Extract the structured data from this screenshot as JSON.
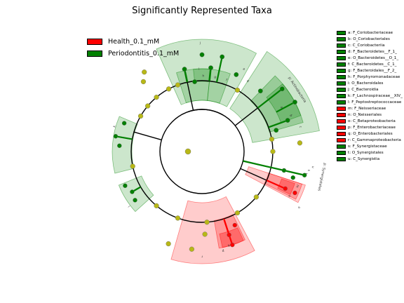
{
  "title": "Significantly Represented Taxa",
  "colors": {
    "health": "#ff0000",
    "periodontitis": "#008000",
    "neutral_node": "#b8b817",
    "edge": "#000000"
  },
  "groups": [
    {
      "id": "health",
      "label": "Health_0.1_mM",
      "color": "#ff0000"
    },
    {
      "id": "periodontitis",
      "label": "Periodontitis_0.1_mM",
      "color": "#008000"
    }
  ],
  "taxa": [
    {
      "letter": "a",
      "text": "a: F_Coriobacteriaceae",
      "group": "periodontitis"
    },
    {
      "letter": "b",
      "text": "b: O_Coriobacteriales",
      "group": "periodontitis"
    },
    {
      "letter": "c",
      "text": "c: C_Coriobacteriia",
      "group": "periodontitis"
    },
    {
      "letter": "d",
      "text": "d: F_Bacteroidetes__F_1_",
      "group": "periodontitis"
    },
    {
      "letter": "e",
      "text": "e: O_Bacteroidetes__O_1_",
      "group": "periodontitis"
    },
    {
      "letter": "f",
      "text": "f: C_Bacteroidetes__C_1_",
      "group": "periodontitis"
    },
    {
      "letter": "g",
      "text": "g: F_Bacteroidales__F_2_",
      "group": "periodontitis"
    },
    {
      "letter": "h",
      "text": "h: F_Porphyromonadaceae",
      "group": "periodontitis"
    },
    {
      "letter": "i",
      "text": "i: O_Bacteroidales",
      "group": "periodontitis"
    },
    {
      "letter": "j",
      "text": "j: C_Bacteroidia",
      "group": "periodontitis"
    },
    {
      "letter": "k",
      "text": "k: F_Lachnospiraceae__XIV_",
      "group": "periodontitis"
    },
    {
      "letter": "l",
      "text": "l: F_Peptostreptococcaceae",
      "group": "periodontitis"
    },
    {
      "letter": "m",
      "text": "m: F_Neisseriaceae",
      "group": "health"
    },
    {
      "letter": "n",
      "text": "n: O_Neisseriales",
      "group": "health"
    },
    {
      "letter": "o",
      "text": "o: C_Betaproteobacteria",
      "group": "health"
    },
    {
      "letter": "p",
      "text": "p: F_Enterobacteriaceae",
      "group": "health"
    },
    {
      "letter": "q",
      "text": "q: O_Enterobacteriales",
      "group": "health"
    },
    {
      "letter": "r",
      "text": "r: C_Gammaproteobacteria",
      "group": "health"
    },
    {
      "letter": "s",
      "text": "s: F_Synergistaceae",
      "group": "periodontitis"
    },
    {
      "letter": "t",
      "text": "t: O_Synergistales",
      "group": "periodontitis"
    },
    {
      "letter": "u",
      "text": "u: C_Synergistia",
      "group": "periodontitis"
    }
  ],
  "clade_labels": {
    "actinobacteria": "p: Actinobacteria",
    "synergistetes": "p: Synergistetes"
  }
}
